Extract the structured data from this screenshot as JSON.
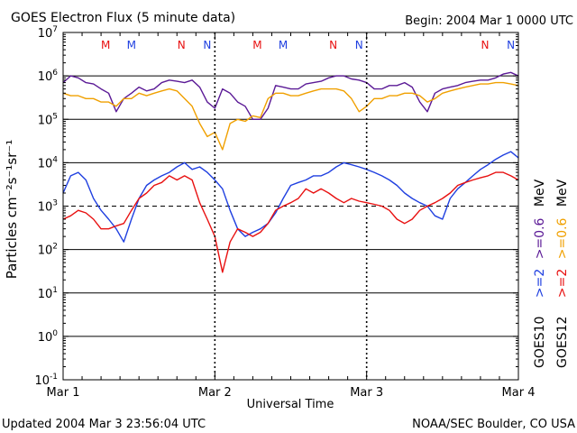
{
  "title": "GOES Electron Flux (5 minute data)",
  "begin_label": "Begin: 2004 Mar 1 0000 UTC",
  "updated_label": "Updated 2004 Mar  3 23:56:04 UTC",
  "credit_label": "NOAA/SEC Boulder, CO USA",
  "colors": {
    "goes10_gt2": "#1f3fe0",
    "goes10_gt06": "#5b1a96",
    "goes12_gt2": "#e81010",
    "goes12_gt06": "#f0a000",
    "marker_M": "#e81010",
    "marker_N": "#1f3fe0",
    "frame": "#000000"
  },
  "legend": {
    "goes10": "GOES10",
    "goes12": "GOES12",
    "goes10_gt2": ">=2",
    "goes10_gt06": ">=0.6",
    "goes12_gt2": ">=2",
    "goes12_gt06": ">=0.6",
    "unit_top": "MeV",
    "unit_bottom": "MeV"
  },
  "chart_data": {
    "type": "line",
    "title": "GOES Electron Flux (5 minute data)",
    "xlabel": "Universal Time",
    "ylabel": "Particles cm⁻²s⁻¹sr⁻¹",
    "x_unit": "days since 2004 Mar 1 0000 UTC",
    "xlim": [
      0,
      3
    ],
    "x_ticks": [
      {
        "x": 0,
        "label": "Mar 1"
      },
      {
        "x": 1,
        "label": "Mar 2"
      },
      {
        "x": 2,
        "label": "Mar 3"
      },
      {
        "x": 3,
        "label": "Mar 4"
      }
    ],
    "y_scale": "log",
    "ylim": [
      0.1,
      10000000
    ],
    "y_ticks": [
      {
        "value": 10000000,
        "base": "10",
        "exp": "7"
      },
      {
        "value": 1000000,
        "base": "10",
        "exp": "6"
      },
      {
        "value": 100000,
        "base": "10",
        "exp": "5"
      },
      {
        "value": 10000,
        "base": "10",
        "exp": "4"
      },
      {
        "value": 1000,
        "base": "10",
        "exp": "3"
      },
      {
        "value": 100,
        "base": "10",
        "exp": "2"
      },
      {
        "value": 10,
        "base": "10",
        "exp": "1"
      },
      {
        "value": 1,
        "base": "10",
        "exp": "0"
      },
      {
        "value": 0.1,
        "base": "10",
        "exp": "-1"
      }
    ],
    "grid_lines": [
      1000000,
      100000,
      10000,
      100,
      10,
      1
    ],
    "threshold_line": 1000,
    "markers": [
      {
        "x": 0.28,
        "label": "M",
        "color": "#e81010"
      },
      {
        "x": 0.45,
        "label": "M",
        "color": "#1f3fe0"
      },
      {
        "x": 0.78,
        "label": "N",
        "color": "#e81010"
      },
      {
        "x": 0.95,
        "label": "N",
        "color": "#1f3fe0"
      },
      {
        "x": 1.28,
        "label": "M",
        "color": "#e81010"
      },
      {
        "x": 1.45,
        "label": "M",
        "color": "#1f3fe0"
      },
      {
        "x": 1.78,
        "label": "N",
        "color": "#e81010"
      },
      {
        "x": 1.95,
        "label": "N",
        "color": "#1f3fe0"
      },
      {
        "x": 2.78,
        "label": "N",
        "color": "#e81010"
      },
      {
        "x": 2.95,
        "label": "N",
        "color": "#1f3fe0"
      }
    ],
    "series": [
      {
        "name": "GOES10 >=0.6 MeV",
        "color": "#5b1a96",
        "x": [
          0,
          0.05,
          0.1,
          0.15,
          0.2,
          0.25,
          0.3,
          0.35,
          0.4,
          0.45,
          0.5,
          0.55,
          0.6,
          0.65,
          0.7,
          0.75,
          0.8,
          0.85,
          0.9,
          0.95,
          1.0,
          1.05,
          1.1,
          1.15,
          1.2,
          1.25,
          1.3,
          1.35,
          1.4,
          1.45,
          1.5,
          1.55,
          1.6,
          1.65,
          1.7,
          1.75,
          1.8,
          1.85,
          1.9,
          1.95,
          2.0,
          2.05,
          2.1,
          2.15,
          2.2,
          2.25,
          2.3,
          2.35,
          2.4,
          2.45,
          2.5,
          2.55,
          2.6,
          2.65,
          2.7,
          2.75,
          2.8,
          2.85,
          2.9,
          2.95,
          3.0
        ],
        "y": [
          700000,
          1000000,
          900000,
          700000,
          650000,
          500000,
          400000,
          150000,
          300000,
          400000,
          550000,
          450000,
          500000,
          700000,
          800000,
          750000,
          700000,
          800000,
          550000,
          250000,
          180000,
          500000,
          400000,
          250000,
          200000,
          100000,
          100000,
          180000,
          600000,
          550000,
          500000,
          500000,
          650000,
          700000,
          750000,
          900000,
          1000000,
          1000000,
          850000,
          800000,
          700000,
          500000,
          500000,
          600000,
          600000,
          700000,
          550000,
          250000,
          150000,
          400000,
          500000,
          550000,
          600000,
          700000,
          750000,
          800000,
          800000,
          900000,
          1100000,
          1200000,
          1000000
        ]
      },
      {
        "name": "GOES12 >=0.6 MeV",
        "color": "#f0a000",
        "x": [
          0,
          0.05,
          0.1,
          0.15,
          0.2,
          0.25,
          0.3,
          0.35,
          0.4,
          0.45,
          0.5,
          0.55,
          0.6,
          0.65,
          0.7,
          0.75,
          0.8,
          0.85,
          0.9,
          0.95,
          1.0,
          1.05,
          1.1,
          1.15,
          1.2,
          1.25,
          1.3,
          1.35,
          1.4,
          1.45,
          1.5,
          1.55,
          1.6,
          1.65,
          1.7,
          1.75,
          1.8,
          1.85,
          1.9,
          1.95,
          2.0,
          2.05,
          2.1,
          2.15,
          2.2,
          2.25,
          2.3,
          2.35,
          2.4,
          2.45,
          2.5,
          2.55,
          2.6,
          2.65,
          2.7,
          2.75,
          2.8,
          2.85,
          2.9,
          2.95,
          3.0
        ],
        "y": [
          400000,
          350000,
          350000,
          300000,
          300000,
          250000,
          250000,
          200000,
          300000,
          300000,
          400000,
          350000,
          400000,
          450000,
          500000,
          450000,
          300000,
          200000,
          80000,
          40000,
          50000,
          20000,
          80000,
          100000,
          90000,
          120000,
          110000,
          300000,
          400000,
          400000,
          350000,
          350000,
          400000,
          450000,
          500000,
          500000,
          500000,
          450000,
          300000,
          150000,
          200000,
          300000,
          300000,
          350000,
          350000,
          400000,
          400000,
          350000,
          250000,
          300000,
          400000,
          450000,
          500000,
          550000,
          600000,
          650000,
          650000,
          700000,
          700000,
          650000,
          600000
        ]
      },
      {
        "name": "GOES10 >=2 MeV",
        "color": "#1f3fe0",
        "x": [
          0,
          0.05,
          0.1,
          0.15,
          0.2,
          0.25,
          0.3,
          0.35,
          0.4,
          0.45,
          0.5,
          0.55,
          0.6,
          0.65,
          0.7,
          0.75,
          0.8,
          0.85,
          0.9,
          0.95,
          1.0,
          1.05,
          1.1,
          1.15,
          1.2,
          1.25,
          1.3,
          1.35,
          1.4,
          1.45,
          1.5,
          1.55,
          1.6,
          1.65,
          1.7,
          1.75,
          1.8,
          1.85,
          1.9,
          1.95,
          2.0,
          2.05,
          2.1,
          2.15,
          2.2,
          2.25,
          2.3,
          2.35,
          2.4,
          2.45,
          2.5,
          2.55,
          2.6,
          2.65,
          2.7,
          2.75,
          2.8,
          2.85,
          2.9,
          2.95,
          3.0
        ],
        "y": [
          2000,
          5000,
          6000,
          4000,
          1500,
          800,
          500,
          300,
          150,
          500,
          1500,
          3000,
          4000,
          5000,
          6000,
          8000,
          10000,
          7000,
          8000,
          6000,
          4000,
          2500,
          800,
          300,
          200,
          250,
          300,
          400,
          700,
          1500,
          3000,
          3500,
          4000,
          5000,
          5000,
          6000,
          8000,
          10000,
          9000,
          8000,
          7000,
          6000,
          5000,
          4000,
          3000,
          2000,
          1500,
          1200,
          1000,
          600,
          500,
          1500,
          2500,
          3500,
          5000,
          7000,
          9000,
          12000,
          15000,
          18000,
          13000
        ]
      },
      {
        "name": "GOES12 >=2 MeV",
        "color": "#e81010",
        "x": [
          0,
          0.05,
          0.1,
          0.15,
          0.2,
          0.25,
          0.3,
          0.35,
          0.4,
          0.45,
          0.5,
          0.55,
          0.6,
          0.65,
          0.7,
          0.75,
          0.8,
          0.85,
          0.9,
          0.95,
          1.0,
          1.05,
          1.1,
          1.15,
          1.2,
          1.25,
          1.3,
          1.35,
          1.4,
          1.45,
          1.5,
          1.55,
          1.6,
          1.65,
          1.7,
          1.75,
          1.8,
          1.85,
          1.9,
          1.95,
          2.0,
          2.05,
          2.1,
          2.15,
          2.2,
          2.25,
          2.3,
          2.35,
          2.4,
          2.45,
          2.5,
          2.55,
          2.6,
          2.65,
          2.7,
          2.75,
          2.8,
          2.85,
          2.9,
          2.95,
          3.0
        ],
        "y": [
          500,
          600,
          800,
          700,
          500,
          300,
          300,
          350,
          400,
          800,
          1500,
          2000,
          3000,
          3500,
          5000,
          4000,
          5000,
          4000,
          1200,
          500,
          200,
          30,
          150,
          300,
          250,
          200,
          250,
          400,
          800,
          1000,
          1200,
          1500,
          2500,
          2000,
          2500,
          2000,
          1500,
          1200,
          1500,
          1300,
          1200,
          1100,
          1000,
          800,
          500,
          400,
          500,
          800,
          1000,
          1200,
          1500,
          2000,
          3000,
          3500,
          4000,
          4500,
          5000,
          6000,
          6000,
          5000,
          4000
        ]
      }
    ]
  }
}
